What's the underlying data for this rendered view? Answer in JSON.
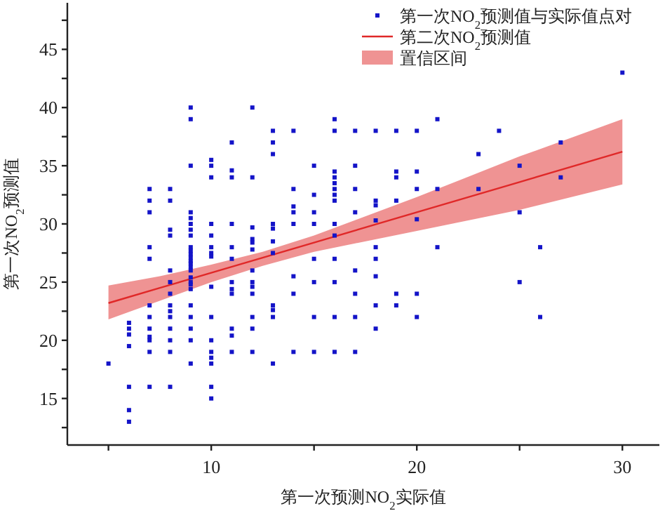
{
  "chart_data": {
    "type": "scatter",
    "xlabel": "第一次预测NO$_{2}$实际值",
    "ylabel": "第一次NO$_{2}$预测值",
    "xlim": [
      3,
      31.8
    ],
    "ylim": [
      11,
      49
    ],
    "xticks": [
      {
        "value": 5,
        "label": null
      },
      10,
      {
        "value": 15,
        "label": null
      },
      20,
      {
        "value": 25,
        "label": null
      },
      30
    ],
    "yticks": [
      {
        "value": 12.5,
        "label": null
      },
      15,
      {
        "value": 17.5,
        "label": null
      },
      20,
      {
        "value": 22.5,
        "label": null
      },
      25,
      {
        "value": 27.5,
        "label": null
      },
      30,
      {
        "value": 32.5,
        "label": null
      },
      35,
      {
        "value": 37.5,
        "label": null
      },
      40,
      {
        "value": 42.5,
        "label": null
      },
      45,
      {
        "value": 47.5,
        "label": null
      }
    ],
    "legend": "top right",
    "series": [
      {
        "name": "第一次NO$_{2}$预测值与实际值点对",
        "color": "#1414c8",
        "marker": "square",
        "x": [
          5,
          6,
          6,
          6,
          6,
          6,
          6,
          6,
          7,
          7,
          7,
          7,
          7,
          7,
          7,
          7,
          7,
          7,
          7,
          7,
          8,
          8,
          8,
          8,
          8,
          8,
          8,
          8,
          8,
          8,
          8,
          8,
          8,
          8,
          9,
          9,
          9,
          9,
          9,
          9,
          9,
          9,
          9,
          9,
          9,
          9,
          9,
          9,
          9,
          9,
          9,
          9,
          9,
          9,
          9,
          9,
          9,
          9,
          9,
          10,
          10,
          10,
          10,
          10,
          10,
          10,
          10,
          10,
          10,
          10,
          10,
          10,
          10,
          10,
          10,
          11,
          11,
          11,
          11,
          11,
          11,
          11,
          11,
          11,
          11,
          11,
          11,
          12,
          12,
          12,
          12,
          12,
          12,
          12,
          12,
          12,
          12,
          12,
          12,
          12,
          13,
          13,
          13,
          13,
          13,
          13,
          13,
          13,
          13,
          13,
          13,
          14,
          14,
          14,
          14,
          14,
          14,
          14,
          14,
          15,
          15,
          15,
          15,
          15,
          15,
          15,
          15,
          16,
          16,
          16,
          16,
          16,
          16,
          16,
          16,
          16,
          16,
          16,
          16,
          16,
          16,
          17,
          17,
          17,
          17,
          17,
          17,
          17,
          17,
          18,
          18,
          18,
          18,
          18,
          18,
          18,
          18,
          18,
          19,
          19,
          19,
          19,
          19,
          19,
          20,
          20,
          20,
          20,
          20,
          20,
          21,
          21,
          21,
          23,
          23,
          24,
          25,
          25,
          25,
          26,
          26,
          27,
          27,
          30
        ],
        "values": [
          18,
          21.5,
          21,
          20.5,
          19.5,
          16,
          14,
          13,
          33,
          32,
          31,
          28,
          27,
          23,
          22,
          21,
          20.3,
          20,
          19,
          16,
          33,
          32,
          29.5,
          29,
          26,
          25,
          24,
          23,
          22.5,
          22,
          21,
          20,
          19,
          16,
          40,
          39,
          35,
          31,
          30.5,
          30,
          29.5,
          29,
          28,
          27.7,
          27.4,
          27.1,
          26.8,
          26.6,
          26.3,
          26,
          25.4,
          25,
          24.8,
          24.4,
          23,
          22,
          21,
          20,
          18,
          35.5,
          35,
          34,
          30,
          29,
          28,
          27.5,
          27.2,
          24.6,
          22,
          20,
          19,
          18.5,
          18,
          16,
          15,
          37,
          34.6,
          34,
          30,
          28,
          27,
          25,
          24.4,
          24,
          21,
          20.4,
          19,
          40,
          34,
          29.7,
          28.7,
          28.4,
          27.8,
          26,
          25,
          24.6,
          24,
          22,
          21,
          19,
          38,
          37,
          36,
          30,
          29.6,
          28.5,
          27.5,
          23,
          22.6,
          22,
          18,
          38,
          33,
          31.5,
          31,
          30,
          25.5,
          24,
          19,
          35,
          32.5,
          31,
          30,
          27,
          25,
          22,
          19,
          39,
          38,
          34.5,
          34,
          33.5,
          33,
          32.5,
          32,
          30,
          29,
          27,
          25,
          22,
          19,
          38,
          35,
          33,
          31,
          26,
          24,
          22,
          19,
          38,
          32,
          31.6,
          30.3,
          28,
          27,
          25.5,
          23,
          21,
          38,
          34.5,
          34,
          32,
          24,
          23,
          38,
          34.5,
          33,
          30.4,
          24,
          22,
          39,
          33,
          28,
          36,
          33,
          38,
          35,
          31,
          25,
          28,
          22,
          37,
          34,
          43
        ]
      },
      {
        "type": "line",
        "name": "第二次NO$_{2}$预测值",
        "color": "#e02828",
        "marker": "none",
        "x": [
          5,
          7.5,
          10,
          12.5,
          15,
          20,
          25,
          30
        ],
        "values": [
          23.2,
          24.5,
          25.8,
          27.1,
          28.4,
          31.0,
          33.6,
          36.2
        ],
        "lower": [
          21.8,
          23.4,
          25.0,
          26.4,
          27.6,
          29.4,
          31.2,
          33.4
        ],
        "upper": [
          24.7,
          25.5,
          26.5,
          27.6,
          29.0,
          32.3,
          35.8,
          39.0
        ]
      }
    ],
    "annotations": [
      "置信区间"
    ]
  }
}
